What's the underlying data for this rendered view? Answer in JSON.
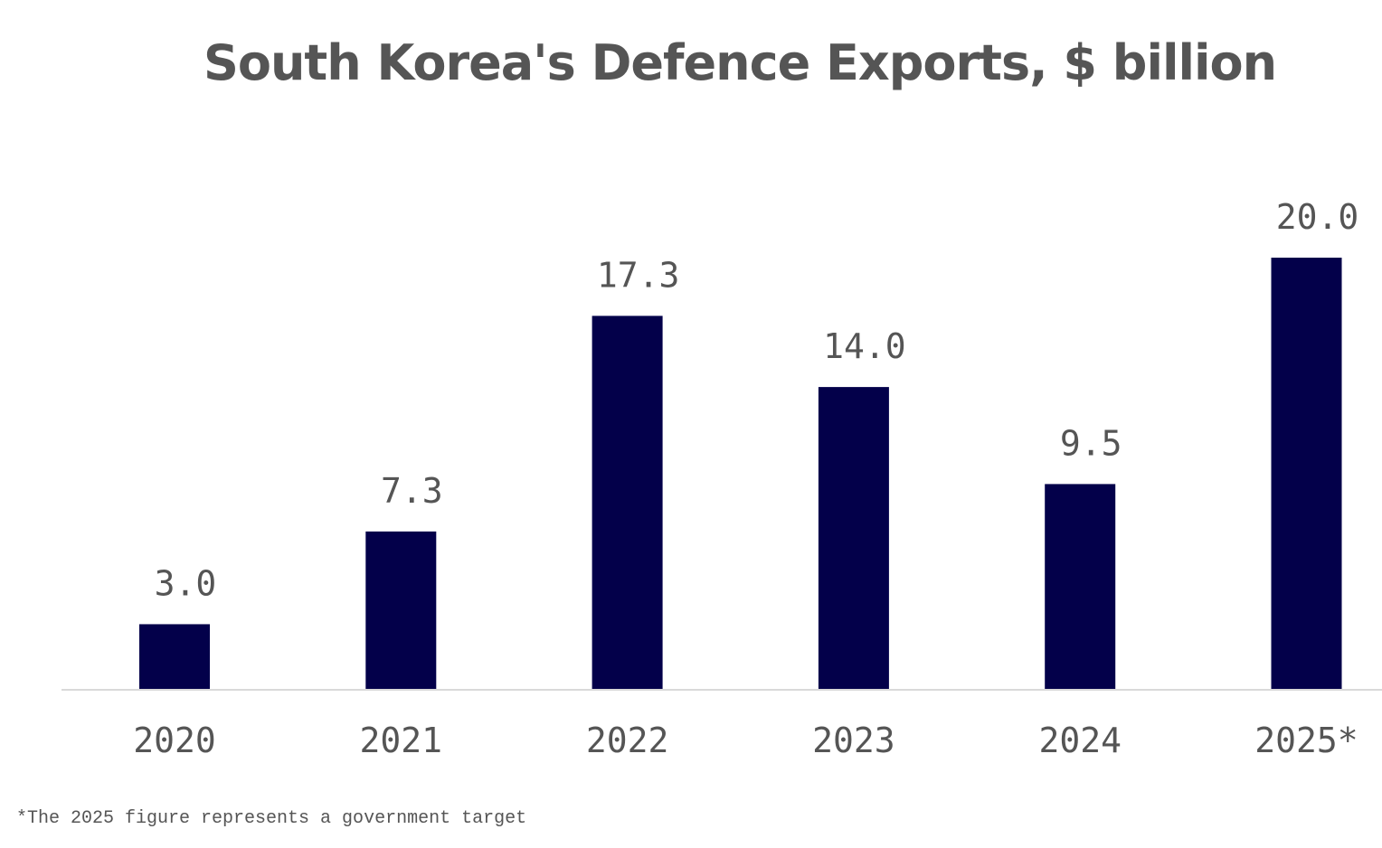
{
  "chart_data": {
    "type": "bar",
    "title": "South Korea's Defence Exports, $ billion",
    "categories": [
      "2020",
      "2021",
      "2022",
      "2023",
      "2024",
      "2025*"
    ],
    "values": [
      3.0,
      7.3,
      17.3,
      14.0,
      9.5,
      20.0
    ],
    "data_labels": [
      "3.0",
      "7.3",
      "17.3",
      "14.0",
      "9.5",
      "20.0"
    ],
    "xlabel": "",
    "ylabel": "",
    "ylim": [
      0,
      20
    ],
    "grid": false,
    "legend": "none",
    "bar_color": "#03004a",
    "text_color": "#555555",
    "footnote": "*The 2025 figure represents a government target"
  }
}
